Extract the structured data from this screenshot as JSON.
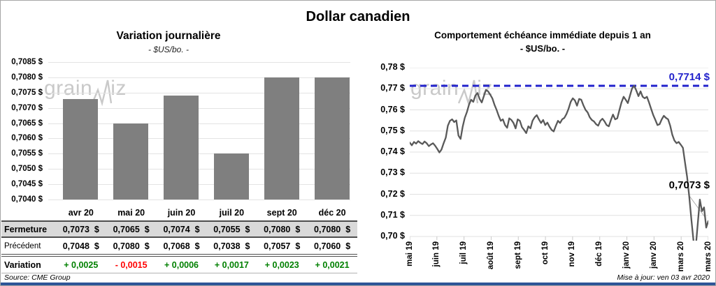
{
  "page": {
    "title": "Dollar canadien",
    "watermark": "grainwiz",
    "source_note": "Source: CME Group",
    "updated_note": "Mise à jour: ven 03 avr 2020"
  },
  "colors": {
    "bar": "#7F7F7F",
    "line": "#595959",
    "reference_blue": "#2222CC",
    "positive": "#008000",
    "negative": "#FF0000",
    "table_highlight_bg": "#D9D9D9",
    "gridline": "#E3E3E3",
    "bottom_strip": "#2E5597"
  },
  "chart_data": [
    {
      "type": "bar",
      "title": "Variation  journalière",
      "subtitle": "- $US/bo. -",
      "categories": [
        "avr 20",
        "mai 20",
        "juin 20",
        "juil 20",
        "sept 20",
        "déc 20"
      ],
      "values": [
        0.7073,
        0.7065,
        0.7074,
        0.7055,
        0.708,
        0.708
      ],
      "ylim": [
        0.704,
        0.7085
      ],
      "ytick_step": 0.0005,
      "ytick_labels": [
        "0,7085 $",
        "0,7080 $",
        "0,7075 $",
        "0,7070 $",
        "0,7065 $",
        "0,7060 $",
        "0,7055 $",
        "0,7050 $",
        "0,7045 $",
        "0,7040 $"
      ],
      "grid": true,
      "legend": "none"
    },
    {
      "type": "line",
      "title": "Comportement échéance immédiate depuis 1 an",
      "subtitle": "- $US/bo. -",
      "x_ticks": [
        "mai 19",
        "juin 19",
        "juil 19",
        "août 19",
        "sept 19",
        "oct 19",
        "nov 19",
        "déc 19",
        "janv 20",
        "janv 20",
        "mars 20",
        "mars 20"
      ],
      "ylim": [
        0.7,
        0.78
      ],
      "ytick_step": 0.01,
      "ytick_labels": [
        "0,78 $",
        "0,77 $",
        "0,76 $",
        "0,75 $",
        "0,74 $",
        "0,73 $",
        "0,72 $",
        "0,71 $",
        "0,70 $"
      ],
      "grid": true,
      "reference_line": {
        "value": 0.7714,
        "label": "0,7714 $",
        "style": "dashed"
      },
      "last_point_label": "0,7073 $",
      "last_value": 0.7073,
      "values": [
        0.7445,
        0.7432,
        0.7448,
        0.744,
        0.7452,
        0.7444,
        0.7438,
        0.745,
        0.7442,
        0.7428,
        0.7436,
        0.7442,
        0.743,
        0.7415,
        0.7398,
        0.7412,
        0.7442,
        0.7468,
        0.7525,
        0.7548,
        0.7555,
        0.7542,
        0.755,
        0.7478,
        0.7462,
        0.752,
        0.7562,
        0.759,
        0.7625,
        0.7648,
        0.7638,
        0.7668,
        0.768,
        0.7652,
        0.7635,
        0.7665,
        0.7695,
        0.7688,
        0.7672,
        0.7655,
        0.7625,
        0.76,
        0.7572,
        0.7548,
        0.7555,
        0.7528,
        0.7515,
        0.756,
        0.7552,
        0.7538,
        0.7512,
        0.7555,
        0.7548,
        0.7518,
        0.7505,
        0.749,
        0.7522,
        0.7512,
        0.7548,
        0.7565,
        0.7575,
        0.7555,
        0.7538,
        0.7552,
        0.7528,
        0.754,
        0.752,
        0.7505,
        0.7498,
        0.7525,
        0.7548,
        0.7538,
        0.7555,
        0.7562,
        0.758,
        0.7605,
        0.7638,
        0.7655,
        0.7645,
        0.762,
        0.7652,
        0.7648,
        0.7622,
        0.76,
        0.7588,
        0.7565,
        0.7552,
        0.7545,
        0.7532,
        0.7525,
        0.7548,
        0.7558,
        0.7545,
        0.7528,
        0.7522,
        0.7552,
        0.7578,
        0.7555,
        0.756,
        0.7598,
        0.7635,
        0.7662,
        0.7648,
        0.7632,
        0.7668,
        0.7702,
        0.7714,
        0.7692,
        0.7665,
        0.7688,
        0.7662,
        0.7655,
        0.7662,
        0.7635,
        0.7605,
        0.7575,
        0.7552,
        0.7528,
        0.7532,
        0.7555,
        0.7572,
        0.7562,
        0.7555,
        0.7525,
        0.7482,
        0.7455,
        0.7442,
        0.7448,
        0.7435,
        0.742,
        0.735,
        0.7282,
        0.719,
        0.708,
        0.698,
        0.694,
        0.706,
        0.7175,
        0.712,
        0.7138,
        0.7042,
        0.7073
      ]
    }
  ],
  "table": {
    "header": [
      "",
      "avr 20",
      "mai 20",
      "juin 20",
      "juil 20",
      "sept 20",
      "déc 20"
    ],
    "rows": [
      {
        "label": "Fermeture",
        "style": "fermeture",
        "values": [
          "0,7073  $",
          "0,7065  $",
          "0,7074  $",
          "0,7055  $",
          "0,7080  $",
          "0,7080  $"
        ]
      },
      {
        "label": "Précédent",
        "style": "precedent",
        "values": [
          "0,7048  $",
          "0,7080  $",
          "0,7068  $",
          "0,7038  $",
          "0,7057  $",
          "0,7060  $"
        ]
      },
      {
        "label": "Variation",
        "style": "variation",
        "values": [
          "+ 0,0025",
          "- 0,0015",
          "+ 0,0006",
          "+ 0,0017",
          "+ 0,0023",
          "+ 0,0021"
        ],
        "signs": [
          "pos",
          "neg",
          "pos",
          "pos",
          "pos",
          "pos"
        ]
      }
    ]
  }
}
